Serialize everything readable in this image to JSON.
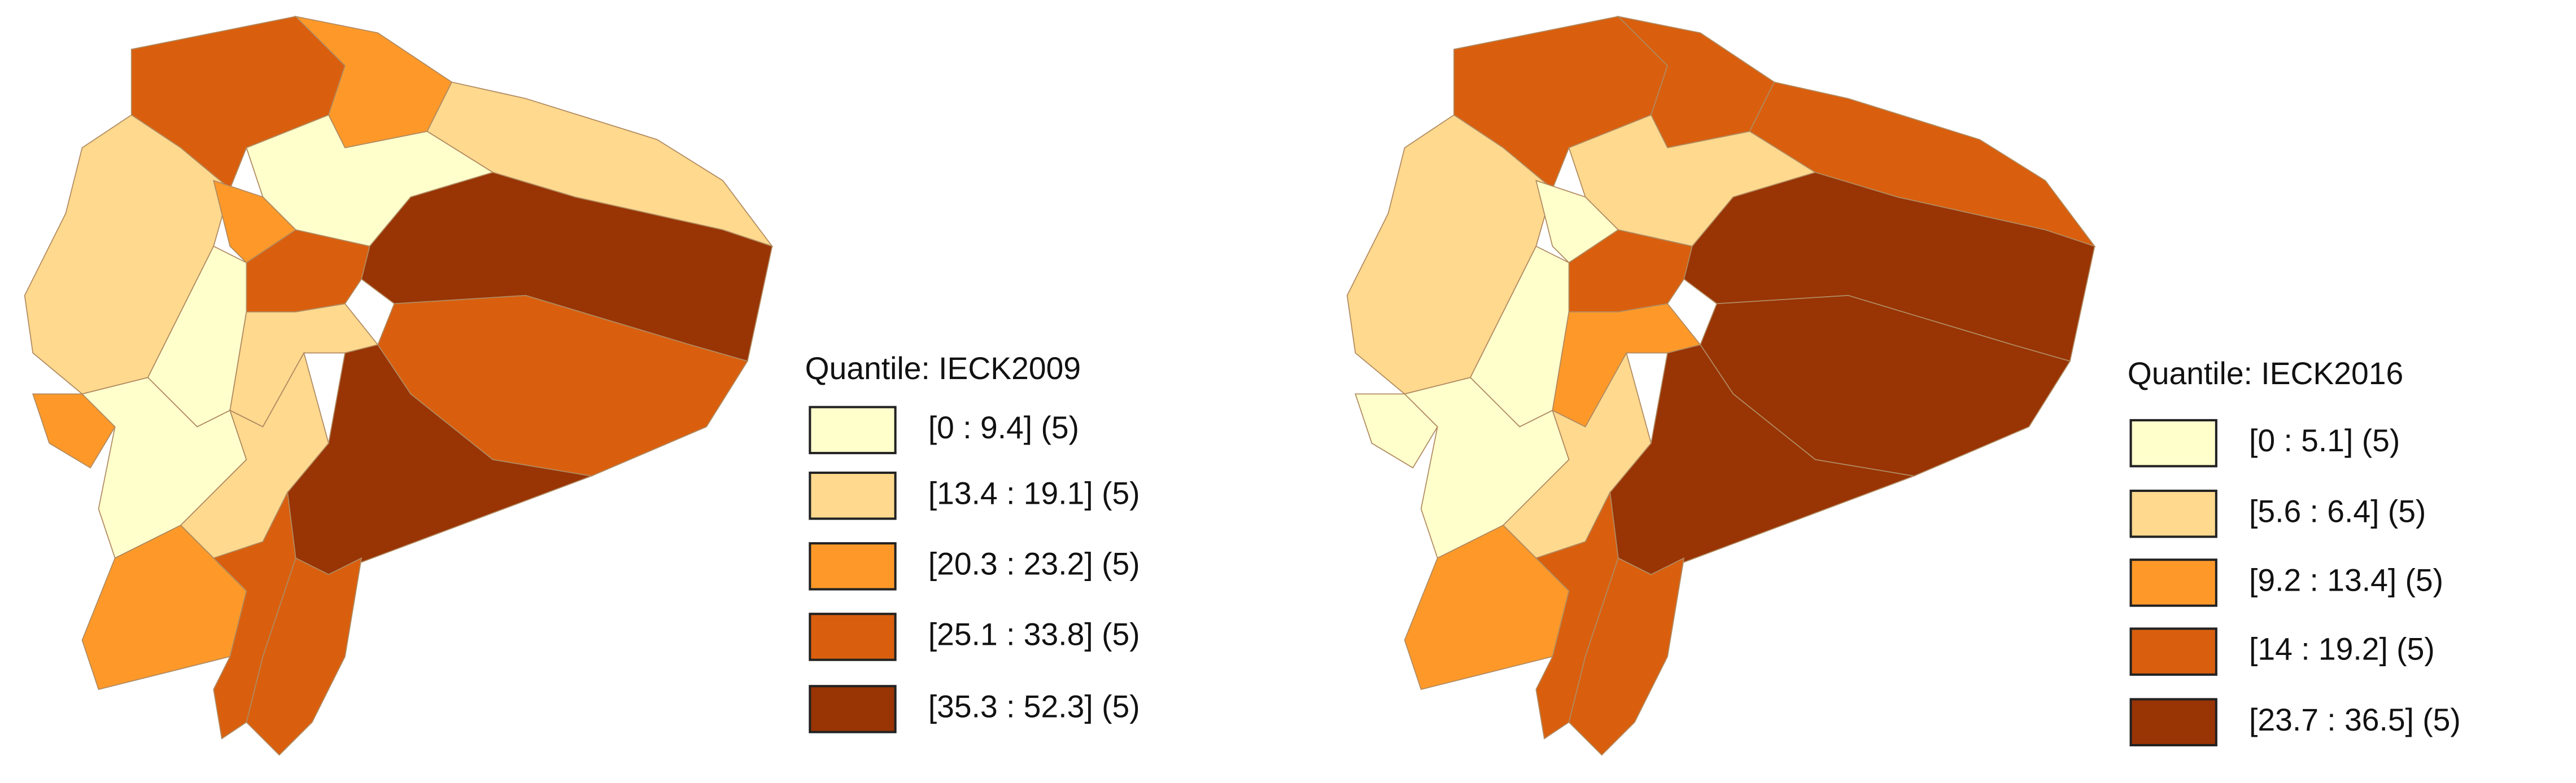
{
  "maps": [
    {
      "legend": {
        "title": "Quantile: IECK2009",
        "classes": [
          {
            "label": "[0 : 9.4] (5)",
            "color": "#ffffcc"
          },
          {
            "label": "[13.4 : 19.1] (5)",
            "color": "#fed98e"
          },
          {
            "label": "[20.3 : 23.2] (5)",
            "color": "#fe9929"
          },
          {
            "label": "[25.1 : 33.8] (5)",
            "color": "#d95f0e"
          },
          {
            "label": "[35.3 : 52.3] (5)",
            "color": "#993404"
          }
        ]
      }
    },
    {
      "legend": {
        "title": "Quantile: IECK2016",
        "classes": [
          {
            "label": "[0 : 5.1] (5)",
            "color": "#ffffcc"
          },
          {
            "label": "[5.6 : 6.4] (5)",
            "color": "#fed98e"
          },
          {
            "label": "[9.2 : 13.4] (5)",
            "color": "#fe9929"
          },
          {
            "label": "[14 : 19.2] (5)",
            "color": "#d95f0e"
          },
          {
            "label": "[23.7 : 36.5] (5)",
            "color": "#993404"
          }
        ]
      }
    }
  ]
}
